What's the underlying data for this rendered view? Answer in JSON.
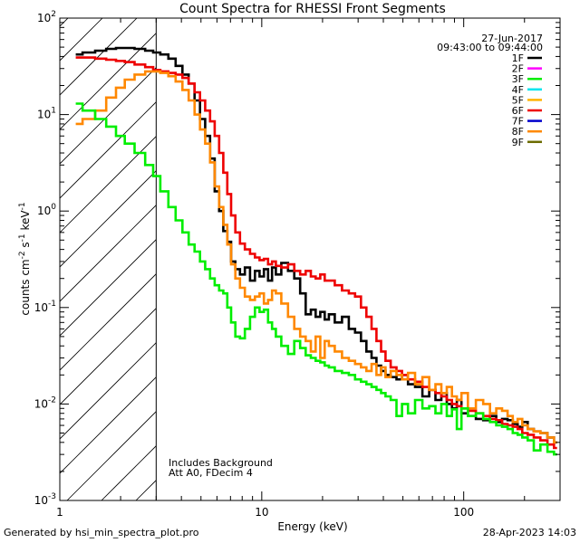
{
  "chart_data": {
    "type": "line",
    "title": "Count Spectra for RHESSI Front Segments",
    "xlabel": "Energy (keV)",
    "ylabel": "counts cm^-2 s^-1 keV^-1",
    "xscale": "log",
    "yscale": "log",
    "xlim": [
      1,
      300
    ],
    "ylim": [
      0.001,
      100
    ],
    "x_ticks": [
      {
        "value": 1,
        "label": "1"
      },
      {
        "value": 10,
        "label": "10"
      },
      {
        "value": 100,
        "label": "100"
      }
    ],
    "y_ticks": [
      {
        "value": 0.001,
        "base": "10",
        "exp": "-3"
      },
      {
        "value": 0.01,
        "base": "10",
        "exp": "-2"
      },
      {
        "value": 0.1,
        "base": "10",
        "exp": "-1"
      },
      {
        "value": 1,
        "base": "10",
        "exp": "0"
      },
      {
        "value": 10,
        "base": "10",
        "exp": "1"
      },
      {
        "value": 100,
        "base": "10",
        "exp": "2"
      }
    ],
    "date": "27-Jun-2017",
    "time_range": "09:43:00 to 09:44:00",
    "excluded_region": {
      "x_min": 1,
      "x_max": 3
    },
    "annotations": [
      "Includes Background",
      "Att A0, FDecim 4"
    ],
    "legend": [
      {
        "label": "1F",
        "color": "#000000"
      },
      {
        "label": "2F",
        "color": "#ff00ff"
      },
      {
        "label": "3F",
        "color": "#00ee00"
      },
      {
        "label": "4F",
        "color": "#00e5ee"
      },
      {
        "label": "5F",
        "color": "#ffb400"
      },
      {
        "label": "6F",
        "color": "#ee0000"
      },
      {
        "label": "7F",
        "color": "#0000cc"
      },
      {
        "label": "8F",
        "color": "#ff8800"
      },
      {
        "label": "9F",
        "color": "#6b6b00"
      }
    ],
    "series": [
      {
        "name": "1F",
        "color": "#000000",
        "x": [
          1.2,
          1.4,
          1.6,
          1.8,
          2.0,
          2.2,
          2.5,
          2.8,
          3.0,
          3.3,
          3.6,
          3.9,
          4.2,
          4.5,
          4.8,
          5.1,
          5.4,
          5.7,
          6.0,
          6.3,
          6.6,
          6.9,
          7.2,
          7.6,
          8.0,
          8.5,
          9.0,
          9.5,
          10,
          10.5,
          11,
          11.5,
          12,
          13,
          14,
          15,
          16,
          17,
          18,
          19,
          20,
          21,
          22,
          24,
          26,
          28,
          30,
          32,
          34,
          36,
          38,
          40,
          42,
          45,
          48,
          51,
          55,
          60,
          65,
          70,
          75,
          80,
          85,
          90,
          95,
          100,
          110,
          120,
          130,
          140,
          150,
          160,
          170,
          180,
          190,
          200,
          215,
          230,
          250,
          270,
          290
        ],
        "y": [
          42,
          44,
          46,
          48,
          49,
          49,
          48,
          46,
          44,
          42,
          38,
          32,
          26,
          21,
          14,
          9,
          6,
          3.5,
          1.6,
          1.0,
          0.62,
          0.48,
          0.3,
          0.25,
          0.22,
          0.26,
          0.19,
          0.24,
          0.21,
          0.25,
          0.19,
          0.26,
          0.22,
          0.29,
          0.24,
          0.2,
          0.14,
          0.085,
          0.095,
          0.08,
          0.09,
          0.075,
          0.085,
          0.07,
          0.08,
          0.06,
          0.055,
          0.045,
          0.035,
          0.03,
          0.025,
          0.022,
          0.02,
          0.019,
          0.018,
          0.02,
          0.016,
          0.015,
          0.012,
          0.014,
          0.011,
          0.013,
          0.01,
          0.009,
          0.011,
          0.008,
          0.0075,
          0.007,
          0.0068,
          0.0075,
          0.0065,
          0.007,
          0.0068,
          0.0062,
          0.0058,
          0.0065,
          0.0055,
          0.0052,
          0.005,
          0.0045,
          0.004
        ]
      },
      {
        "name": "6F",
        "color": "#ee0000",
        "x": [
          1.2,
          1.4,
          1.6,
          1.8,
          2.0,
          2.2,
          2.5,
          2.8,
          3.0,
          3.3,
          3.6,
          3.9,
          4.2,
          4.5,
          4.8,
          5.1,
          5.4,
          5.7,
          6.0,
          6.3,
          6.6,
          6.9,
          7.2,
          7.6,
          8.0,
          8.5,
          9.0,
          9.5,
          10,
          10.5,
          11,
          11.5,
          12,
          13,
          14,
          15,
          16,
          17,
          18,
          19,
          20,
          21,
          22,
          24,
          26,
          28,
          30,
          32,
          34,
          36,
          38,
          40,
          42,
          45,
          48,
          51,
          55,
          60,
          65,
          70,
          75,
          80,
          85,
          90,
          95,
          100,
          110,
          120,
          130,
          140,
          150,
          160,
          170,
          180,
          190,
          200,
          215,
          230,
          250,
          270,
          290
        ],
        "y": [
          39,
          39,
          38,
          37,
          36,
          35,
          33,
          31,
          29,
          28,
          27,
          26,
          24,
          21,
          17,
          14,
          11,
          8.5,
          6,
          4,
          2.5,
          1.5,
          0.9,
          0.6,
          0.46,
          0.4,
          0.36,
          0.33,
          0.31,
          0.32,
          0.28,
          0.3,
          0.27,
          0.26,
          0.28,
          0.24,
          0.22,
          0.24,
          0.21,
          0.2,
          0.22,
          0.19,
          0.19,
          0.17,
          0.15,
          0.14,
          0.13,
          0.1,
          0.08,
          0.06,
          0.045,
          0.035,
          0.028,
          0.024,
          0.022,
          0.02,
          0.018,
          0.017,
          0.015,
          0.014,
          0.013,
          0.012,
          0.011,
          0.01,
          0.0095,
          0.009,
          0.0085,
          0.008,
          0.0075,
          0.007,
          0.0068,
          0.0062,
          0.006,
          0.0058,
          0.0055,
          0.005,
          0.0048,
          0.0045,
          0.0042,
          0.0038,
          0.0035
        ]
      },
      {
        "name": "8F",
        "color": "#ff8800",
        "x": [
          1.2,
          1.4,
          1.6,
          1.8,
          2.0,
          2.2,
          2.5,
          2.8,
          3.0,
          3.3,
          3.6,
          3.9,
          4.2,
          4.5,
          4.8,
          5.1,
          5.4,
          5.7,
          6.0,
          6.3,
          6.6,
          6.9,
          7.2,
          7.6,
          8.0,
          8.5,
          9.0,
          9.5,
          10,
          10.5,
          11,
          11.5,
          12,
          13,
          14,
          15,
          16,
          17,
          18,
          19,
          20,
          21,
          22,
          24,
          26,
          28,
          30,
          32,
          34,
          36,
          38,
          40,
          42,
          45,
          48,
          51,
          55,
          60,
          65,
          70,
          75,
          80,
          85,
          90,
          95,
          100,
          110,
          120,
          130,
          140,
          150,
          160,
          170,
          180,
          190,
          200,
          215,
          230,
          250,
          270,
          290
        ],
        "y": [
          8,
          9,
          11,
          15,
          19,
          23,
          26,
          28,
          28,
          27,
          25,
          22,
          18,
          14,
          10,
          7,
          5,
          3.2,
          1.8,
          1.1,
          0.72,
          0.45,
          0.28,
          0.2,
          0.16,
          0.13,
          0.12,
          0.13,
          0.14,
          0.11,
          0.12,
          0.15,
          0.14,
          0.11,
          0.08,
          0.06,
          0.05,
          0.045,
          0.035,
          0.05,
          0.03,
          0.045,
          0.04,
          0.035,
          0.03,
          0.028,
          0.026,
          0.024,
          0.022,
          0.026,
          0.02,
          0.024,
          0.019,
          0.022,
          0.02,
          0.018,
          0.021,
          0.016,
          0.019,
          0.014,
          0.016,
          0.013,
          0.015,
          0.012,
          0.011,
          0.013,
          0.009,
          0.011,
          0.01,
          0.008,
          0.009,
          0.0085,
          0.0075,
          0.0065,
          0.007,
          0.006,
          0.0055,
          0.0052,
          0.005,
          0.0045,
          0.004
        ]
      },
      {
        "name": "3F",
        "color": "#00ee00",
        "x": [
          1.2,
          1.4,
          1.6,
          1.8,
          2.0,
          2.2,
          2.5,
          2.8,
          3.0,
          3.3,
          3.6,
          3.9,
          4.2,
          4.5,
          4.8,
          5.1,
          5.4,
          5.7,
          6.0,
          6.3,
          6.6,
          6.9,
          7.2,
          7.6,
          8.0,
          8.5,
          9.0,
          9.5,
          10,
          10.5,
          11,
          11.5,
          12,
          13,
          14,
          15,
          16,
          17,
          18,
          19,
          20,
          21,
          22,
          24,
          26,
          28,
          30,
          32,
          34,
          36,
          38,
          40,
          42,
          45,
          48,
          51,
          55,
          60,
          65,
          70,
          75,
          80,
          85,
          90,
          95,
          100,
          110,
          120,
          130,
          140,
          150,
          160,
          170,
          180,
          190,
          200,
          215,
          230,
          250,
          270,
          290
        ],
        "y": [
          13,
          11,
          9,
          7.5,
          6,
          5,
          4,
          3,
          2.3,
          1.6,
          1.1,
          0.8,
          0.6,
          0.45,
          0.38,
          0.3,
          0.25,
          0.2,
          0.17,
          0.15,
          0.14,
          0.1,
          0.07,
          0.05,
          0.048,
          0.06,
          0.08,
          0.1,
          0.09,
          0.095,
          0.07,
          0.06,
          0.05,
          0.04,
          0.033,
          0.045,
          0.038,
          0.032,
          0.03,
          0.028,
          0.027,
          0.025,
          0.024,
          0.022,
          0.021,
          0.02,
          0.018,
          0.017,
          0.016,
          0.015,
          0.014,
          0.013,
          0.012,
          0.011,
          0.0075,
          0.01,
          0.008,
          0.011,
          0.009,
          0.0095,
          0.008,
          0.01,
          0.0075,
          0.0088,
          0.0055,
          0.009,
          0.0075,
          0.008,
          0.007,
          0.0065,
          0.006,
          0.0058,
          0.0055,
          0.005,
          0.0048,
          0.0045,
          0.0042,
          0.0033,
          0.0038,
          0.0032,
          0.003
        ]
      }
    ]
  },
  "footer": {
    "left": "Generated by hsi_min_spectra_plot.pro",
    "right": "28-Apr-2023 14:03"
  }
}
